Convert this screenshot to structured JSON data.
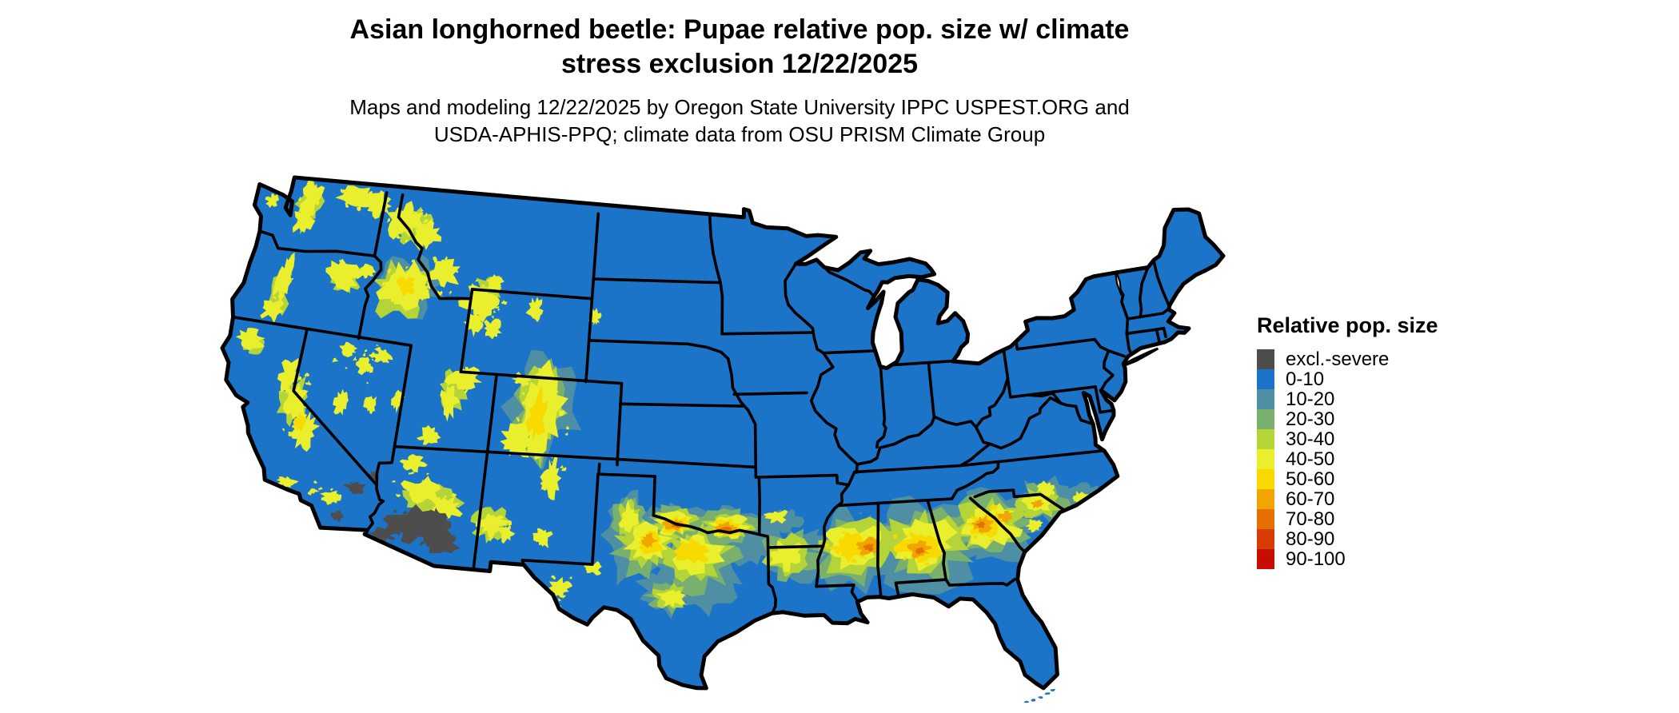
{
  "header": {
    "title_line1": "Asian longhorned beetle: Pupae relative pop. size w/ climate",
    "title_line2": "stress exclusion 12/22/2025",
    "subtitle_line1": "Maps and modeling 12/22/2025 by Oregon State University IPPC USPEST.ORG and",
    "subtitle_line2": "USDA-APHIS-PPQ; climate data from OSU PRISM Climate Group"
  },
  "legend": {
    "title": "Relative pop. size",
    "items": [
      {
        "label": "excl.-severe",
        "color": "#4d4d4d"
      },
      {
        "label": "0-10",
        "color": "#1b74c8"
      },
      {
        "label": "10-20",
        "color": "#4f8fa3"
      },
      {
        "label": "20-30",
        "color": "#79b06e"
      },
      {
        "label": "30-40",
        "color": "#b5d438"
      },
      {
        "label": "40-50",
        "color": "#e9ee2d"
      },
      {
        "label": "50-60",
        "color": "#f9da00"
      },
      {
        "label": "60-70",
        "color": "#f0a500"
      },
      {
        "label": "70-80",
        "color": "#e57000"
      },
      {
        "label": "80-90",
        "color": "#d83c05"
      },
      {
        "label": "90-100",
        "color": "#c70c00"
      }
    ]
  }
}
